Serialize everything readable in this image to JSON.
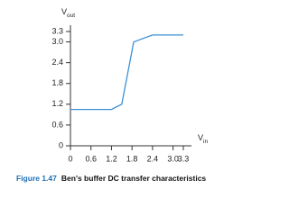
{
  "chart_data": {
    "type": "line",
    "y_label": {
      "main": "V",
      "sub": "out"
    },
    "x_label": {
      "main": "V",
      "sub": "in"
    },
    "caption": {
      "number": "Figure 1.47",
      "text": "Ben's buffer DC transfer characteristics"
    },
    "x": [
      0,
      1.2,
      1.5,
      1.85,
      2.4,
      3.3
    ],
    "series": [
      {
        "name": "Vout",
        "color": "#3a8fd6",
        "values": [
          1.05,
          1.05,
          1.2,
          3.0,
          3.2,
          3.2
        ]
      }
    ],
    "xlim": [
      0,
      3.3
    ],
    "ylim": [
      0,
      3.3
    ],
    "xticks": [
      0,
      0.6,
      1.2,
      1.8,
      2.4,
      {
        "value": 3,
        "label": "3.0"
      },
      3.3
    ],
    "yticks": [
      0,
      0.6,
      1.2,
      1.8,
      2.4,
      {
        "value": 3,
        "label": "3.0"
      },
      3.3
    ],
    "grid": false
  }
}
